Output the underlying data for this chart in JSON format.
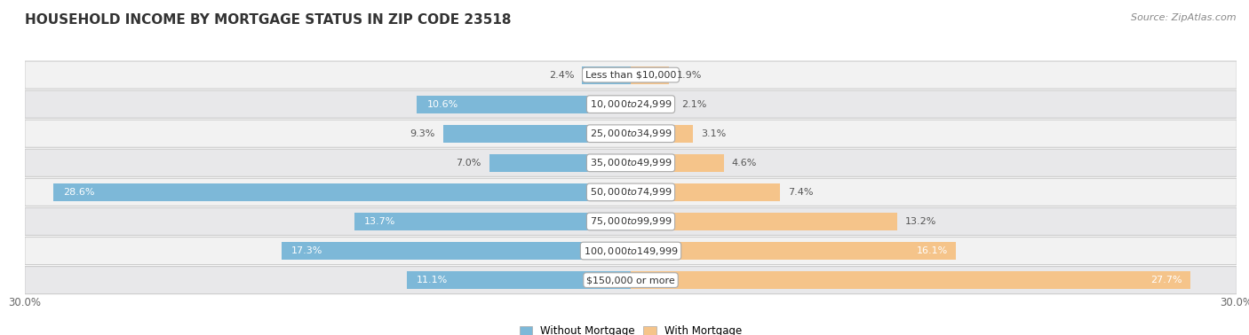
{
  "title": "HOUSEHOLD INCOME BY MORTGAGE STATUS IN ZIP CODE 23518",
  "source": "Source: ZipAtlas.com",
  "categories": [
    "Less than $10,000",
    "$10,000 to $24,999",
    "$25,000 to $34,999",
    "$35,000 to $49,999",
    "$50,000 to $74,999",
    "$75,000 to $99,999",
    "$100,000 to $149,999",
    "$150,000 or more"
  ],
  "without_mortgage": [
    2.4,
    10.6,
    9.3,
    7.0,
    28.6,
    13.7,
    17.3,
    11.1
  ],
  "with_mortgage": [
    1.9,
    2.1,
    3.1,
    4.6,
    7.4,
    13.2,
    16.1,
    27.7
  ],
  "color_without": "#7db8d8",
  "color_with": "#f5c48a",
  "row_colors": [
    "#f2f2f2",
    "#e8e8ea"
  ],
  "xlim": 30.0,
  "title_fontsize": 11,
  "cat_fontsize": 8,
  "pct_fontsize": 8,
  "tick_fontsize": 8.5,
  "legend_fontsize": 8.5,
  "source_fontsize": 8
}
